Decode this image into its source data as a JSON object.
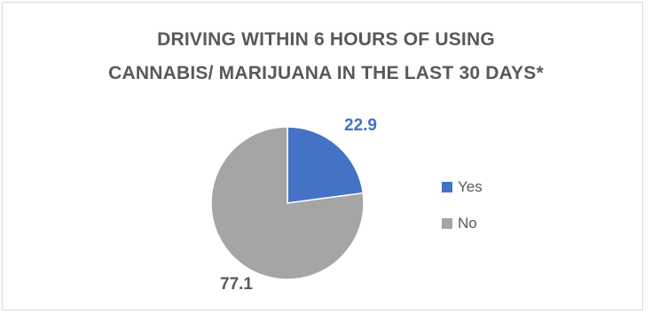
{
  "chart_data": {
    "type": "pie",
    "title_line1": "DRIVING WITHIN 6 HOURS OF USING",
    "title_line2": "CANNABIS/ MARIJUANA IN THE LAST 30 DAYS*",
    "slices": [
      {
        "label": "Yes",
        "value": 22.9,
        "color": "#4472c4",
        "label_color": "#4472c4"
      },
      {
        "label": "No",
        "value": 77.1,
        "color": "#a5a5a5",
        "label_color": "#595959"
      }
    ],
    "data_labels": [
      "22.9",
      "77.1"
    ],
    "legend_position": "right"
  }
}
